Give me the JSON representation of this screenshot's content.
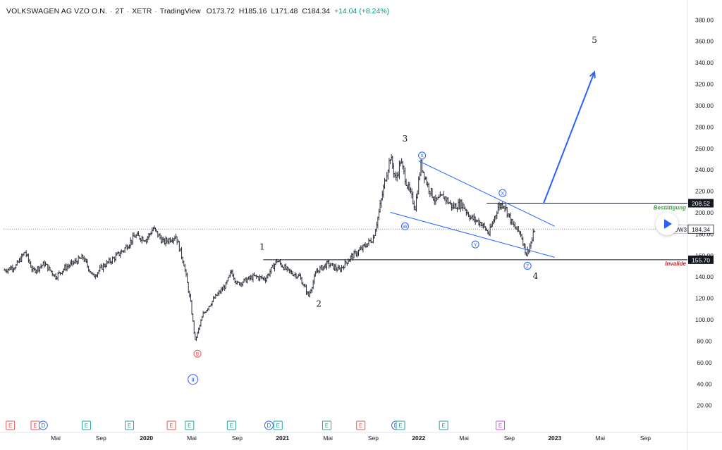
{
  "header": {
    "symbol": "VOLKSWAGEN AG VZO O.N.",
    "interval": "2T",
    "exchange": "XETR",
    "source": "TradingView",
    "open": "O173.72",
    "high": "H185.16",
    "low": "L171.48",
    "close": "C184.34",
    "change": "+14.04 (+8.24%)"
  },
  "colors": {
    "candle": "#2a2e39",
    "channel": "#2962ff",
    "level": "#131722",
    "confirm": "#43a047",
    "invalid": "#c62828",
    "grid_price": "#b2b5be",
    "earnings": "#ef5350",
    "dividend": "#2962ff",
    "event": "#26a69a",
    "split": "#e040fb"
  },
  "chart_data": {
    "type": "candlestick",
    "title": "",
    "y_axis": {
      "ticks": [
        20,
        40,
        60,
        80,
        100,
        120,
        140,
        160,
        180,
        200,
        220,
        240,
        260,
        280,
        300,
        320,
        340,
        360,
        380
      ],
      "tick_labels": [
        "20.00",
        "40.00",
        "60.00",
        "80.00",
        "100.00",
        "120.00",
        "140.00",
        "160.00",
        "180.00",
        "200.00",
        "220.00",
        "240.00",
        "260.00",
        "280.00",
        "300.00",
        "320.00",
        "340.00",
        "360.00",
        "380.00"
      ],
      "range": [
        7,
        393
      ],
      "side": "right"
    },
    "x_axis": {
      "tick_labels": [
        "Mai",
        "Sep",
        "2020",
        "Mai",
        "Sep",
        "2021",
        "Mai",
        "Sep",
        "2022",
        "Mai",
        "Sep",
        "2023",
        "Mai",
        "Sep"
      ],
      "bold_labels": [
        "2020",
        "2021",
        "2022",
        "2023"
      ],
      "range_months": [
        -4.6,
        55.7
      ],
      "tick_months": [
        0,
        4,
        8,
        12,
        16,
        20,
        24,
        28,
        32,
        36,
        40,
        44,
        48,
        52
      ]
    },
    "price_path": [
      {
        "month": -4.5,
        "price": 146
      },
      {
        "month": -3.5,
        "price": 150
      },
      {
        "month": -2.7,
        "price": 163
      },
      {
        "month": -2.0,
        "price": 145
      },
      {
        "month": -1.0,
        "price": 152
      },
      {
        "month": 0.0,
        "price": 140
      },
      {
        "month": 0.8,
        "price": 148
      },
      {
        "month": 1.6,
        "price": 153
      },
      {
        "month": 2.4,
        "price": 158
      },
      {
        "month": 3.3,
        "price": 140
      },
      {
        "month": 4.2,
        "price": 150
      },
      {
        "month": 5.0,
        "price": 156
      },
      {
        "month": 6.0,
        "price": 165
      },
      {
        "month": 7.0,
        "price": 178
      },
      {
        "month": 8.0,
        "price": 175
      },
      {
        "month": 8.6,
        "price": 185
      },
      {
        "month": 9.5,
        "price": 172
      },
      {
        "month": 10.6,
        "price": 178
      },
      {
        "month": 11.3,
        "price": 152
      },
      {
        "month": 11.9,
        "price": 115
      },
      {
        "month": 12.3,
        "price": 80
      },
      {
        "month": 13.0,
        "price": 105
      },
      {
        "month": 14.0,
        "price": 120
      },
      {
        "month": 15.0,
        "price": 132
      },
      {
        "month": 15.5,
        "price": 145
      },
      {
        "month": 16.0,
        "price": 133
      },
      {
        "month": 17.5,
        "price": 140
      },
      {
        "month": 18.5,
        "price": 138
      },
      {
        "month": 19.5,
        "price": 155
      },
      {
        "month": 20.5,
        "price": 145
      },
      {
        "month": 21.5,
        "price": 140
      },
      {
        "month": 22.3,
        "price": 122
      },
      {
        "month": 23.0,
        "price": 145
      },
      {
        "month": 24.0,
        "price": 152
      },
      {
        "month": 25.0,
        "price": 146
      },
      {
        "month": 26.0,
        "price": 158
      },
      {
        "month": 27.0,
        "price": 166
      },
      {
        "month": 28.0,
        "price": 176
      },
      {
        "month": 28.5,
        "price": 200
      },
      {
        "month": 29.0,
        "price": 228
      },
      {
        "month": 29.5,
        "price": 252
      },
      {
        "month": 30.0,
        "price": 230
      },
      {
        "month": 30.4,
        "price": 248
      },
      {
        "month": 31.0,
        "price": 225
      },
      {
        "month": 31.7,
        "price": 205
      },
      {
        "month": 32.2,
        "price": 245
      },
      {
        "month": 32.8,
        "price": 225
      },
      {
        "month": 33.5,
        "price": 210
      },
      {
        "month": 34.2,
        "price": 215
      },
      {
        "month": 35.0,
        "price": 205
      },
      {
        "month": 35.8,
        "price": 208
      },
      {
        "month": 36.6,
        "price": 195
      },
      {
        "month": 37.5,
        "price": 190
      },
      {
        "month": 38.2,
        "price": 180
      },
      {
        "month": 39.0,
        "price": 205
      },
      {
        "month": 39.5,
        "price": 208
      },
      {
        "month": 40.3,
        "price": 188
      },
      {
        "month": 41.0,
        "price": 180
      },
      {
        "month": 41.5,
        "price": 161
      },
      {
        "month": 42.0,
        "price": 174
      },
      {
        "month": 42.2,
        "price": 184
      }
    ],
    "levels": [
      {
        "price": 208.52,
        "label": "208.52",
        "note": "Bestätigung",
        "start_month": 38.0
      },
      {
        "price": 155.7,
        "label": "155.70",
        "note": "Invalide",
        "start_month": 18.3
      }
    ],
    "current_price": {
      "price": 184.34,
      "label": "184.34",
      "tag": "DW3"
    },
    "channel_lines": [
      {
        "from": {
          "month": 32.0,
          "price": 248
        },
        "to": {
          "month": 44.0,
          "price": 187
        }
      },
      {
        "from": {
          "month": 29.5,
          "price": 200
        },
        "to": {
          "month": 44.0,
          "price": 158
        }
      }
    ],
    "target_arrow": {
      "from": {
        "month": 43.0,
        "price": 208
      },
      "to": {
        "month": 47.5,
        "price": 331
      }
    },
    "wave_labels": [
      {
        "text": "1",
        "month": 18.2,
        "price": 165
      },
      {
        "text": "2",
        "month": 23.2,
        "price": 112
      },
      {
        "text": "3",
        "month": 30.8,
        "price": 266
      },
      {
        "text": "4",
        "month": 42.3,
        "price": 138
      },
      {
        "text": "5",
        "month": 47.5,
        "price": 358
      }
    ],
    "circle_labels": [
      {
        "text": "B",
        "month": 12.5,
        "price": 68,
        "color": "#ef5350"
      },
      {
        "text": "ii",
        "month": 12.1,
        "price": 44,
        "color": "#2962ff"
      },
      {
        "text": "X",
        "month": 32.3,
        "price": 253,
        "color": "#2962ff"
      },
      {
        "text": "W",
        "month": 30.8,
        "price": 187,
        "color": "#2962ff"
      },
      {
        "text": "Y",
        "month": 37.0,
        "price": 170,
        "color": "#2962ff"
      },
      {
        "text": "X",
        "month": 39.4,
        "price": 218,
        "color": "#2962ff"
      },
      {
        "text": "Z",
        "month": 41.6,
        "price": 150,
        "color": "#2962ff"
      }
    ],
    "events": [
      {
        "letter": "E",
        "month": -4.0,
        "type": "earnings"
      },
      {
        "letter": "E",
        "month": -1.8,
        "type": "earnings"
      },
      {
        "letter": "D",
        "month": -1.1,
        "type": "dividend"
      },
      {
        "letter": "E",
        "month": 2.7,
        "type": "event"
      },
      {
        "letter": "E",
        "month": 6.5,
        "type": "event"
      },
      {
        "letter": "E",
        "month": 10.2,
        "type": "earnings"
      },
      {
        "letter": "E",
        "month": 11.8,
        "type": "event"
      },
      {
        "letter": "E",
        "month": 15.5,
        "type": "event"
      },
      {
        "letter": "D",
        "month": 18.8,
        "type": "dividend"
      },
      {
        "letter": "E",
        "month": 19.6,
        "type": "event"
      },
      {
        "letter": "E",
        "month": 23.9,
        "type": "event"
      },
      {
        "letter": "E",
        "month": 26.9,
        "type": "earnings"
      },
      {
        "letter": "D",
        "month": 30.0,
        "type": "dividend"
      },
      {
        "letter": "E",
        "month": 30.4,
        "type": "event"
      },
      {
        "letter": "E",
        "month": 34.2,
        "type": "event"
      },
      {
        "letter": "E",
        "month": 39.2,
        "type": "split"
      }
    ]
  }
}
